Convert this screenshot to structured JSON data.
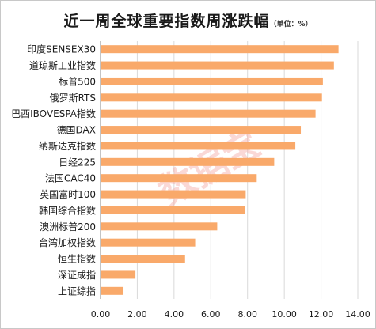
{
  "title_main": "近一周全球重要指数周涨跌幅",
  "title_unit": "（单位：%）",
  "watermark_text": "数据宝",
  "chart_data": {
    "type": "bar",
    "orientation": "horizontal",
    "title": "近一周全球重要指数周涨跌幅（单位：%）",
    "categories": [
      "印度SENSEX30",
      "道琼斯工业指数",
      "标普500",
      "俄罗斯RTS",
      "巴西IBOVESPA指数",
      "德国DAX",
      "纳斯达克指数",
      "日经225",
      "法国CAC40",
      "英国富时100",
      "韩国综合指数",
      "澳洲标普200",
      "台湾加权指数",
      "恒生指数",
      "深证成指",
      "上证综指"
    ],
    "values": [
      12.95,
      12.7,
      12.1,
      12.05,
      11.7,
      10.9,
      10.6,
      9.45,
      8.5,
      7.9,
      7.85,
      6.35,
      5.15,
      4.6,
      1.9,
      1.25
    ],
    "xlim": [
      0,
      14
    ],
    "xticks": [
      "0.00",
      "2.00",
      "4.00",
      "6.00",
      "8.00",
      "10.00",
      "12.00",
      "14.00"
    ],
    "bar_color": "#f9a96a",
    "grid": "vertical",
    "legend": "none"
  }
}
